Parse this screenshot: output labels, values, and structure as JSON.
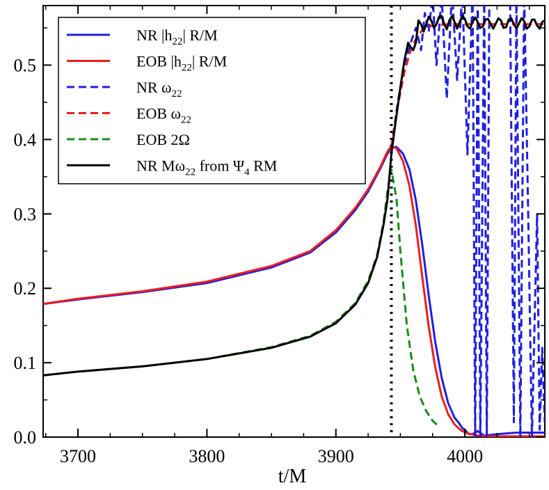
{
  "chart_data": {
    "type": "line",
    "xlabel": "t/M",
    "ylabel": "",
    "xlim": [
      3673,
      4062
    ],
    "ylim": [
      0.0,
      0.58
    ],
    "xticks": [
      3700,
      3800,
      3900,
      4000
    ],
    "yticks": [
      0.0,
      0.1,
      0.2,
      0.3,
      0.4,
      0.5
    ],
    "xtick_labels": [
      "3700",
      "3800",
      "3900",
      "4000"
    ],
    "ytick_labels": [
      "0.0",
      "0.1",
      "0.2",
      "0.3",
      "0.4",
      "0.5"
    ],
    "vline": 3943,
    "grid": false,
    "legend_position": "top-left",
    "series": [
      {
        "legend": {
          "main": "NR |h",
          "sub": "22",
          "tail": "| R/M"
        },
        "color": "#1f1fe0",
        "dash": "solid",
        "x": [
          3673,
          3700,
          3750,
          3800,
          3850,
          3880,
          3900,
          3915,
          3925,
          3935,
          3940,
          3943,
          3947,
          3952,
          3957,
          3962,
          3967,
          3972,
          3977,
          3982,
          3987,
          3992,
          3995,
          3998,
          4000,
          4003,
          4006,
          4010,
          4015,
          4025,
          4040,
          4062
        ],
        "y": [
          0.179,
          0.185,
          0.195,
          0.207,
          0.228,
          0.248,
          0.275,
          0.305,
          0.33,
          0.363,
          0.381,
          0.389,
          0.39,
          0.381,
          0.36,
          0.318,
          0.258,
          0.19,
          0.128,
          0.08,
          0.046,
          0.026,
          0.02,
          0.012,
          0.01,
          0.004,
          0.004,
          0.008,
          0.002,
          0.004,
          0.006,
          0.006
        ]
      },
      {
        "legend": {
          "main": "EOB |h",
          "sub": "22",
          "tail": "| R/M"
        },
        "color": "#ee1c1c",
        "dash": "solid",
        "x": [
          3673,
          3700,
          3750,
          3800,
          3850,
          3880,
          3900,
          3915,
          3925,
          3935,
          3940,
          3943,
          3947,
          3952,
          3957,
          3962,
          3967,
          3972,
          3977,
          3982,
          3987,
          3992,
          3997,
          4002,
          4010,
          4020,
          4040,
          4062
        ],
        "y": [
          0.179,
          0.186,
          0.196,
          0.209,
          0.23,
          0.25,
          0.278,
          0.308,
          0.333,
          0.365,
          0.384,
          0.391,
          0.388,
          0.371,
          0.338,
          0.284,
          0.215,
          0.148,
          0.094,
          0.055,
          0.031,
          0.017,
          0.009,
          0.005,
          0.002,
          0.001,
          0.001,
          0.001
        ]
      },
      {
        "legend": {
          "main": "NR ω",
          "sub": "22",
          "tail": ""
        },
        "color": "#1f1fe0",
        "dash": "dashed",
        "x": [
          3943,
          3948,
          3953,
          3958,
          3962,
          3966,
          3969,
          3972,
          3975,
          3978,
          3982,
          3986,
          3990,
          3994,
          3998,
          4002,
          4006,
          4008,
          4010,
          4012,
          4015,
          4017,
          4019,
          4022,
          4026,
          4030,
          4035,
          4038,
          4040,
          4043,
          4046,
          4049,
          4052,
          4056,
          4058,
          4060,
          4062
        ],
        "y": [
          0.39,
          0.45,
          0.5,
          0.53,
          0.55,
          0.52,
          0.57,
          0.545,
          0.595,
          0.5,
          0.595,
          0.455,
          0.6,
          0.48,
          0.6,
          0.38,
          0.6,
          0.0,
          0.6,
          0.0,
          0.6,
          0.0,
          0.6,
          0.6,
          0.6,
          0.6,
          0.6,
          0.02,
          0.6,
          0.0,
          0.6,
          0.31,
          0.0,
          0.3,
          0.01,
          0.12,
          0.02
        ]
      },
      {
        "legend": {
          "main": "EOB ω",
          "sub": "22",
          "tail": ""
        },
        "color": "#ee1c1c",
        "dash": "dashed",
        "x": [
          3943,
          3948,
          3953,
          3958,
          3962,
          3966,
          3970,
          3975,
          3980,
          3990,
          4000,
          4020,
          4040,
          4062
        ],
        "y": [
          0.39,
          0.445,
          0.49,
          0.52,
          0.535,
          0.545,
          0.551,
          0.553,
          0.554,
          0.555,
          0.555,
          0.555,
          0.555,
          0.555
        ]
      },
      {
        "legend": {
          "main": "EOB 2Ω",
          "sub": "",
          "tail": ""
        },
        "color": "#1a8a1a",
        "dash": "dashed",
        "x": [
          3673,
          3700,
          3750,
          3800,
          3850,
          3880,
          3900,
          3915,
          3925,
          3932,
          3937,
          3940,
          3943,
          3947,
          3950,
          3955,
          3960,
          3965,
          3970,
          3975,
          3980
        ],
        "y": [
          0.083,
          0.088,
          0.095,
          0.105,
          0.121,
          0.136,
          0.155,
          0.18,
          0.21,
          0.245,
          0.29,
          0.33,
          0.36,
          0.32,
          0.25,
          0.15,
          0.09,
          0.055,
          0.035,
          0.022,
          0.014
        ]
      },
      {
        "legend": {
          "main": "NR  Mω",
          "sub": "22",
          "tail": " from Ψ",
          "sub2": "4",
          "tail2": " RM"
        },
        "color": "#000000",
        "dash": "solid",
        "x": [
          3673,
          3700,
          3750,
          3800,
          3850,
          3880,
          3900,
          3915,
          3925,
          3932,
          3937,
          3940,
          3943,
          3946,
          3950,
          3953,
          3956,
          3958,
          3960,
          3962,
          3964,
          3966,
          3968,
          3970,
          3972,
          3974,
          3976,
          3978,
          3980,
          3982,
          3984,
          3986,
          3988,
          3990,
          3992,
          3994,
          3996,
          3998,
          4000,
          4002,
          4004,
          4006,
          4008,
          4010,
          4012,
          4014,
          4016,
          4018,
          4020,
          4022,
          4024,
          4026,
          4028,
          4030,
          4032,
          4034,
          4036,
          4038,
          4040,
          4042,
          4044,
          4046,
          4048,
          4050,
          4052,
          4054,
          4056,
          4058,
          4060,
          4062
        ],
        "y": [
          0.083,
          0.088,
          0.095,
          0.105,
          0.12,
          0.135,
          0.153,
          0.178,
          0.207,
          0.242,
          0.286,
          0.32,
          0.38,
          0.42,
          0.47,
          0.505,
          0.53,
          0.524,
          0.52,
          0.53,
          0.56,
          0.555,
          0.545,
          0.555,
          0.565,
          0.56,
          0.55,
          0.555,
          0.565,
          0.566,
          0.555,
          0.548,
          0.56,
          0.566,
          0.558,
          0.549,
          0.558,
          0.566,
          0.562,
          0.552,
          0.549,
          0.558,
          0.564,
          0.558,
          0.55,
          0.552,
          0.561,
          0.562,
          0.555,
          0.549,
          0.556,
          0.563,
          0.56,
          0.55,
          0.551,
          0.561,
          0.563,
          0.555,
          0.549,
          0.556,
          0.563,
          0.559,
          0.549,
          0.552,
          0.561,
          0.561,
          0.553,
          0.549,
          0.558,
          0.56
        ]
      }
    ]
  }
}
